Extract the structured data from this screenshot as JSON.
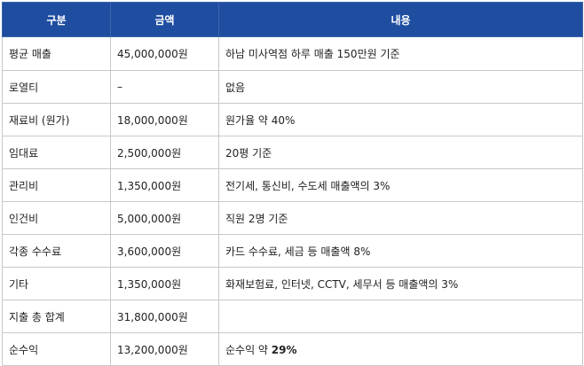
{
  "colors": {
    "header_bg": "#1f4ea1",
    "grid": "#c8c8c8",
    "text": "#222222"
  },
  "table": {
    "headers": [
      "구분",
      "금액",
      "내용"
    ],
    "rows": [
      {
        "category": "평균 매출",
        "amount": "45,000,000원",
        "detail": "하남 미사역점 하루 매출 150만원 기준"
      },
      {
        "category": "로열티",
        "amount": "–",
        "detail": "없음"
      },
      {
        "category": "재료비 (원가)",
        "amount": "18,000,000원",
        "detail": "원가율 약 40%"
      },
      {
        "category": "임대료",
        "amount": "2,500,000원",
        "detail": "20평 기준"
      },
      {
        "category": "관리비",
        "amount": "1,350,000원",
        "detail": "전기세, 통신비, 수도세 매출액의 3%"
      },
      {
        "category": "인건비",
        "amount": "5,000,000원",
        "detail": "직원 2명 기준"
      },
      {
        "category": "각종 수수료",
        "amount": "3,600,000원",
        "detail": "카드 수수료, 세금 등 매출액 8%"
      },
      {
        "category": "기타",
        "amount": "1,350,000원",
        "detail": "화재보험료, 인터넷, CCTV, 세무서 등 매출액의 3%"
      },
      {
        "category": "지출 총 합계",
        "amount": "31,800,000원",
        "detail": ""
      },
      {
        "category": "순수익",
        "amount": "13,200,000원",
        "detail": "순수익 약 ",
        "detail_strong": "29%"
      }
    ]
  }
}
